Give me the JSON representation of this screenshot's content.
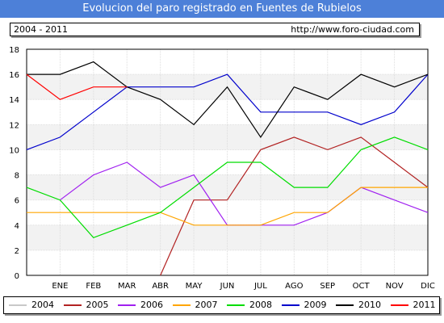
{
  "header": {
    "title": "Evolucion del paro registrado en Fuentes de Rubielos",
    "period": "2004 - 2011",
    "url": "http://www.foro-ciudad.com"
  },
  "chart_data": {
    "type": "line",
    "title": "Evolucion del paro registrado en Fuentes de Rubielos",
    "xlabel": "",
    "ylabel": "",
    "categories": [
      "",
      "ENE",
      "FEB",
      "MAR",
      "ABR",
      "MAY",
      "JUN",
      "JUL",
      "AGO",
      "SEP",
      "OCT",
      "NOV",
      "DIC"
    ],
    "ylim": [
      0,
      18
    ],
    "yticks": [
      0,
      2,
      4,
      6,
      8,
      10,
      12,
      14,
      16,
      18
    ],
    "grid": true,
    "legend": "bottom",
    "series": [
      {
        "name": "2004",
        "color": "#c8c8c8",
        "values": [
          null,
          null,
          null,
          null,
          null,
          null,
          null,
          null,
          null,
          null,
          null,
          null,
          null
        ]
      },
      {
        "name": "2005",
        "color": "#b22222",
        "values": [
          null,
          null,
          null,
          null,
          0,
          6,
          6,
          10,
          11,
          10,
          11,
          9,
          7
        ]
      },
      {
        "name": "2006",
        "color": "#a020f0",
        "values": [
          null,
          6,
          8,
          9,
          7,
          8,
          4,
          4,
          4,
          5,
          7,
          6,
          5
        ]
      },
      {
        "name": "2007",
        "color": "#ffa500",
        "values": [
          5,
          5,
          5,
          5,
          5,
          4,
          4,
          4,
          5,
          5,
          7,
          7,
          7
        ]
      },
      {
        "name": "2008",
        "color": "#00dd00",
        "values": [
          7,
          6,
          3,
          4,
          5,
          7,
          9,
          9,
          7,
          7,
          10,
          11,
          10
        ]
      },
      {
        "name": "2009",
        "color": "#0000cc",
        "values": [
          10,
          11,
          13,
          15,
          15,
          15,
          16,
          13,
          13,
          13,
          12,
          13,
          16
        ]
      },
      {
        "name": "2010",
        "color": "#000000",
        "values": [
          16,
          16,
          17,
          15,
          14,
          12,
          15,
          11,
          15,
          14,
          16,
          15,
          16
        ]
      },
      {
        "name": "2011",
        "color": "#ff0000",
        "values": [
          16,
          14,
          15,
          15,
          null,
          null,
          null,
          null,
          null,
          null,
          null,
          null,
          null
        ]
      }
    ]
  }
}
